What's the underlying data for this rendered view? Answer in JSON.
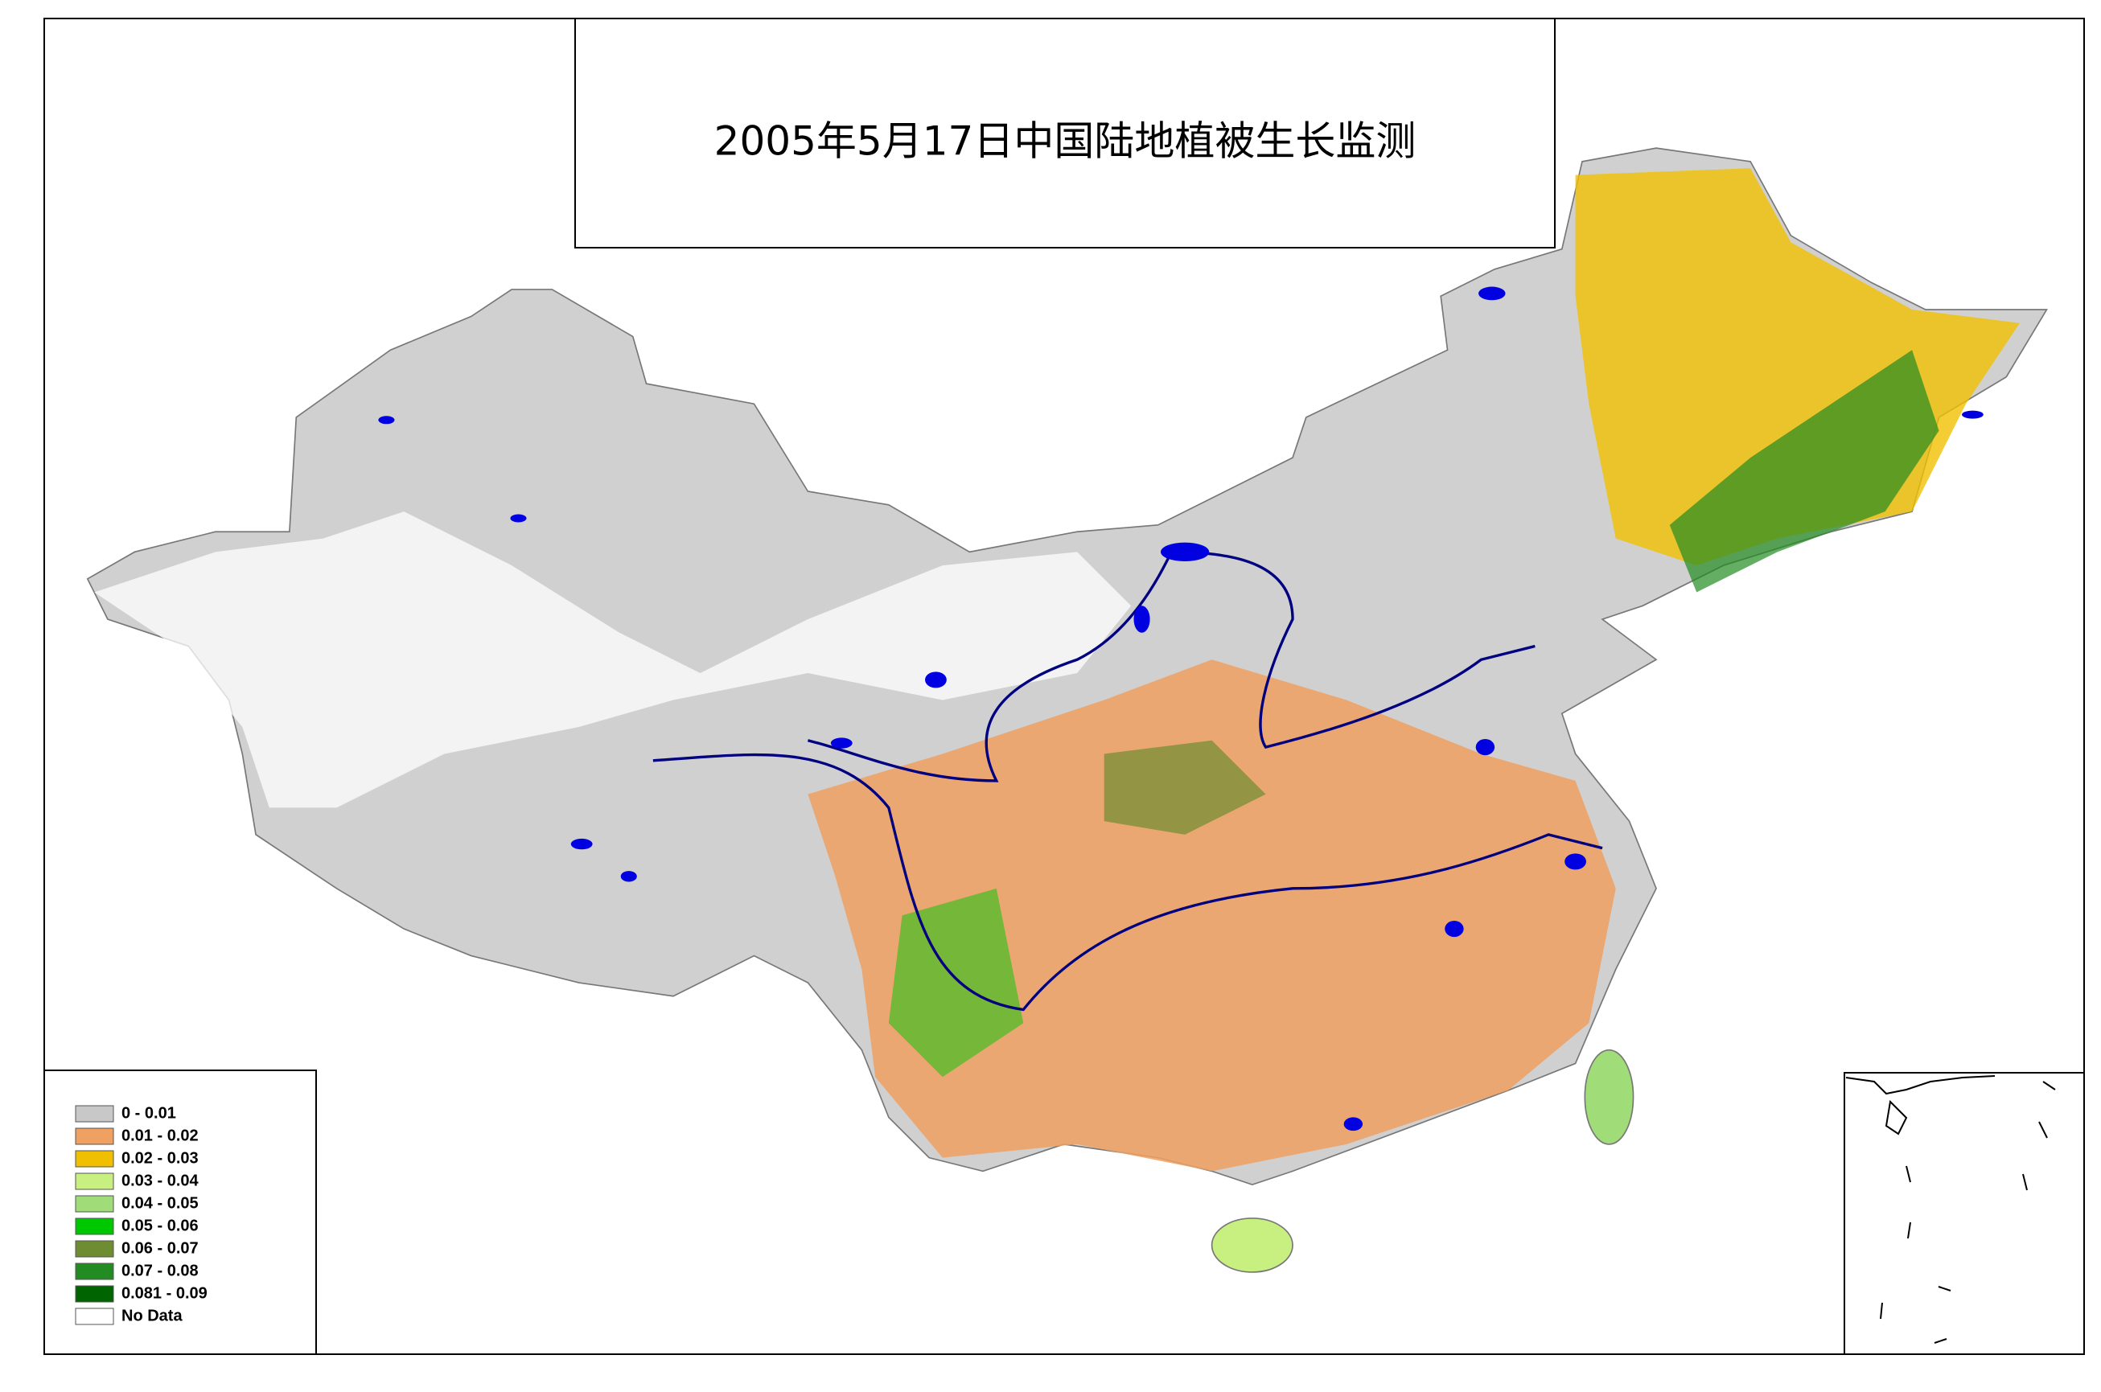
{
  "title": "2005年5月17日中国陆地植被生长监测",
  "legend": {
    "items": [
      {
        "label": "0 - 0.01",
        "color": "#c8c8c8"
      },
      {
        "label": "0.01 - 0.02",
        "color": "#f0a060"
      },
      {
        "label": "0.02 - 0.03",
        "color": "#f0c000"
      },
      {
        "label": "0.03 - 0.04",
        "color": "#c8f080"
      },
      {
        "label": "0.04 - 0.05",
        "color": "#a0dc78"
      },
      {
        "label": "0.05 - 0.06",
        "color": "#00c800"
      },
      {
        "label": "0.06 - 0.07",
        "color": "#6e8c32"
      },
      {
        "label": "0.07 - 0.08",
        "color": "#228b22"
      },
      {
        "label": "0.081 - 0.09",
        "color": "#006400"
      },
      {
        "label": "No Data",
        "color": "#ffffff"
      }
    ]
  }
}
